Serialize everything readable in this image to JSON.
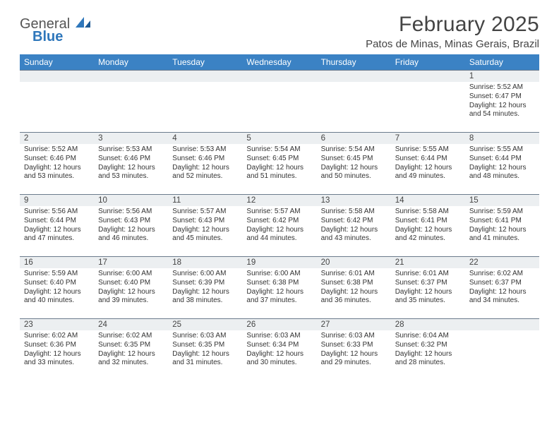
{
  "logo": {
    "word1": "General",
    "word2": "Blue"
  },
  "header": {
    "month_title": "February 2025",
    "location": "Patos de Minas, Minas Gerais, Brazil"
  },
  "colors": {
    "header_bg": "#3b82c4",
    "header_text": "#ffffff",
    "daynum_bg": "#eceff1",
    "border": "#6b7b8c",
    "logo_blue": "#2f77bb"
  },
  "weekdays": [
    "Sunday",
    "Monday",
    "Tuesday",
    "Wednesday",
    "Thursday",
    "Friday",
    "Saturday"
  ],
  "weeks": [
    [
      null,
      null,
      null,
      null,
      null,
      null,
      {
        "n": "1",
        "sr": "5:52 AM",
        "ss": "6:47 PM",
        "dl": "12 hours and 54 minutes."
      }
    ],
    [
      {
        "n": "2",
        "sr": "5:52 AM",
        "ss": "6:46 PM",
        "dl": "12 hours and 53 minutes."
      },
      {
        "n": "3",
        "sr": "5:53 AM",
        "ss": "6:46 PM",
        "dl": "12 hours and 53 minutes."
      },
      {
        "n": "4",
        "sr": "5:53 AM",
        "ss": "6:46 PM",
        "dl": "12 hours and 52 minutes."
      },
      {
        "n": "5",
        "sr": "5:54 AM",
        "ss": "6:45 PM",
        "dl": "12 hours and 51 minutes."
      },
      {
        "n": "6",
        "sr": "5:54 AM",
        "ss": "6:45 PM",
        "dl": "12 hours and 50 minutes."
      },
      {
        "n": "7",
        "sr": "5:55 AM",
        "ss": "6:44 PM",
        "dl": "12 hours and 49 minutes."
      },
      {
        "n": "8",
        "sr": "5:55 AM",
        "ss": "6:44 PM",
        "dl": "12 hours and 48 minutes."
      }
    ],
    [
      {
        "n": "9",
        "sr": "5:56 AM",
        "ss": "6:44 PM",
        "dl": "12 hours and 47 minutes."
      },
      {
        "n": "10",
        "sr": "5:56 AM",
        "ss": "6:43 PM",
        "dl": "12 hours and 46 minutes."
      },
      {
        "n": "11",
        "sr": "5:57 AM",
        "ss": "6:43 PM",
        "dl": "12 hours and 45 minutes."
      },
      {
        "n": "12",
        "sr": "5:57 AM",
        "ss": "6:42 PM",
        "dl": "12 hours and 44 minutes."
      },
      {
        "n": "13",
        "sr": "5:58 AM",
        "ss": "6:42 PM",
        "dl": "12 hours and 43 minutes."
      },
      {
        "n": "14",
        "sr": "5:58 AM",
        "ss": "6:41 PM",
        "dl": "12 hours and 42 minutes."
      },
      {
        "n": "15",
        "sr": "5:59 AM",
        "ss": "6:41 PM",
        "dl": "12 hours and 41 minutes."
      }
    ],
    [
      {
        "n": "16",
        "sr": "5:59 AM",
        "ss": "6:40 PM",
        "dl": "12 hours and 40 minutes."
      },
      {
        "n": "17",
        "sr": "6:00 AM",
        "ss": "6:40 PM",
        "dl": "12 hours and 39 minutes."
      },
      {
        "n": "18",
        "sr": "6:00 AM",
        "ss": "6:39 PM",
        "dl": "12 hours and 38 minutes."
      },
      {
        "n": "19",
        "sr": "6:00 AM",
        "ss": "6:38 PM",
        "dl": "12 hours and 37 minutes."
      },
      {
        "n": "20",
        "sr": "6:01 AM",
        "ss": "6:38 PM",
        "dl": "12 hours and 36 minutes."
      },
      {
        "n": "21",
        "sr": "6:01 AM",
        "ss": "6:37 PM",
        "dl": "12 hours and 35 minutes."
      },
      {
        "n": "22",
        "sr": "6:02 AM",
        "ss": "6:37 PM",
        "dl": "12 hours and 34 minutes."
      }
    ],
    [
      {
        "n": "23",
        "sr": "6:02 AM",
        "ss": "6:36 PM",
        "dl": "12 hours and 33 minutes."
      },
      {
        "n": "24",
        "sr": "6:02 AM",
        "ss": "6:35 PM",
        "dl": "12 hours and 32 minutes."
      },
      {
        "n": "25",
        "sr": "6:03 AM",
        "ss": "6:35 PM",
        "dl": "12 hours and 31 minutes."
      },
      {
        "n": "26",
        "sr": "6:03 AM",
        "ss": "6:34 PM",
        "dl": "12 hours and 30 minutes."
      },
      {
        "n": "27",
        "sr": "6:03 AM",
        "ss": "6:33 PM",
        "dl": "12 hours and 29 minutes."
      },
      {
        "n": "28",
        "sr": "6:04 AM",
        "ss": "6:32 PM",
        "dl": "12 hours and 28 minutes."
      },
      null
    ]
  ],
  "labels": {
    "sunrise": "Sunrise:",
    "sunset": "Sunset:",
    "daylight": "Daylight:"
  }
}
